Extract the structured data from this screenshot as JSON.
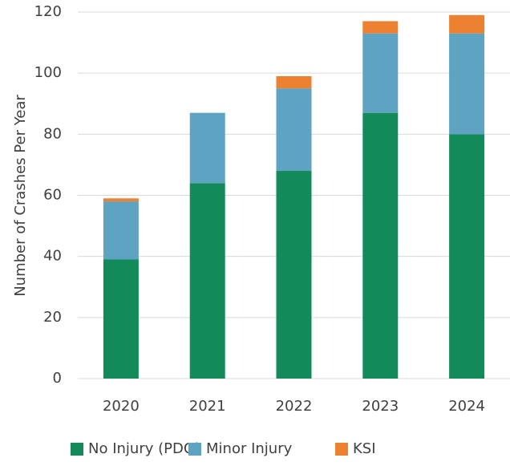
{
  "chart_data": {
    "type": "stacked_bar",
    "categories": [
      "2020",
      "2021",
      "2022",
      "2023",
      "2024"
    ],
    "series": [
      {
        "name": "No Injury (PDO)",
        "color": "#138a5a",
        "values": [
          39,
          64,
          68,
          87,
          80
        ]
      },
      {
        "name": "Minor Injury",
        "color": "#5ea3c1",
        "values": [
          19,
          23,
          27,
          26,
          33
        ]
      },
      {
        "name": "KSI",
        "color": "#ec8131",
        "values": [
          1,
          0,
          4,
          4,
          6
        ]
      }
    ],
    "y_axis_label": "Number of Crashes Per Year",
    "ylim": [
      0,
      120
    ],
    "yticks": [
      0,
      20,
      40,
      60,
      80,
      100,
      120
    ],
    "grid": true,
    "legend": "bottom"
  }
}
